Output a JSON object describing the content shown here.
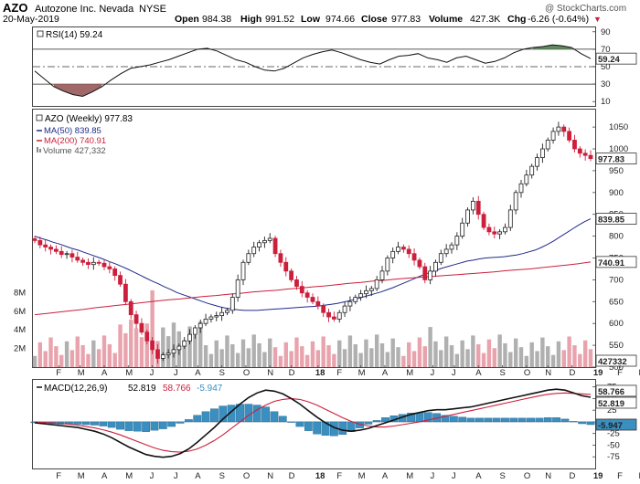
{
  "header": {
    "symbol": "AZO",
    "company": "Autozone Inc. Nevada",
    "exchange": "NYSE",
    "date": "20-May-2019",
    "open_label": "Open",
    "open": "984.38",
    "high_label": "High",
    "high": "991.52",
    "low_label": "Low",
    "low": "974.66",
    "close_label": "Close",
    "close": "977.83",
    "volume_label": "Volume",
    "volume": "427.3K",
    "chg_label": "Chg",
    "chg": "-6.26 (-0.64%)",
    "chg_arrow": "▼",
    "watermark": "@ StockCharts.com"
  },
  "colors": {
    "up": "#222222",
    "down": "#cc1f3c",
    "ma50": "#1f2a8a",
    "ma200": "#cc1f3c",
    "rsi_fill_over": "#5f8a5f",
    "rsi_fill_under": "#a06868",
    "hist": "#3a8fc0",
    "vol_up": "#b0b0b0",
    "vol_down": "#e8a3ad"
  },
  "chart_data": [
    {
      "id": "rsi",
      "type": "line",
      "title": "RSI(14) 59.24",
      "legend": "RSI(14) 59.24",
      "ylim": [
        5,
        95
      ],
      "ticks": [
        90,
        70,
        50,
        30,
        10
      ],
      "levels": [
        70,
        30
      ],
      "dashed_level": 50,
      "last_value": "59.24",
      "values": [
        45,
        36,
        27,
        22,
        18,
        16,
        21,
        27,
        35,
        42,
        48,
        50,
        52,
        55,
        58,
        62,
        66,
        70,
        71,
        68,
        63,
        58,
        55,
        50,
        46,
        45,
        48,
        54,
        60,
        64,
        67,
        69,
        66,
        62,
        58,
        55,
        53,
        58,
        62,
        63,
        65,
        60,
        58,
        55,
        60,
        62,
        58,
        54,
        56,
        60,
        66,
        70,
        72,
        73,
        75,
        74,
        72,
        65,
        59.24
      ]
    },
    {
      "id": "price",
      "type": "candlestick",
      "title": "AZO (Weekly) 977.83",
      "legend": [
        "AZO (Weekly) 977.83",
        "MA(50) 839.85",
        "MA(200) 740.91",
        "Volume 427,332"
      ],
      "ylim": [
        500,
        1090
      ],
      "ticks": [
        1050,
        1000,
        950,
        900,
        850,
        800,
        750,
        700,
        650,
        600,
        550,
        500
      ],
      "last_close": "977.83",
      "ma50_last": "839.85",
      "ma200_last": "740.91",
      "volume_last": "427332",
      "volume_ticks": [
        "8M",
        "6M",
        "4M",
        "2M"
      ],
      "volume_tick_values": [
        8,
        6,
        4,
        2
      ],
      "volume_max": 10,
      "x_labels": [
        "F",
        "M",
        "A",
        "M",
        "J",
        "J",
        "A",
        "S",
        "O",
        "N",
        "D",
        "18",
        "F",
        "M",
        "A",
        "M",
        "J",
        "J",
        "A",
        "S",
        "O",
        "N",
        "D",
        "19",
        "F",
        "M",
        "A",
        "M"
      ],
      "x_label_weeks": [
        4.5,
        8.5,
        13,
        17.5,
        22,
        26.5,
        30.5,
        35,
        39.5,
        44,
        48,
        53,
        57,
        61,
        65.5,
        70,
        74.5,
        78.5,
        83,
        87.5,
        92,
        96,
        100.5,
        105,
        109.5,
        113.5,
        118,
        122.5
      ],
      "closes": [
        790,
        780,
        775,
        770,
        765,
        758,
        760,
        752,
        745,
        740,
        735,
        740,
        738,
        730,
        725,
        710,
        690,
        650,
        620,
        600,
        580,
        560,
        540,
        520,
        528,
        532,
        540,
        548,
        560,
        575,
        590,
        600,
        610,
        615,
        618,
        625,
        630,
        660,
        700,
        740,
        760,
        775,
        785,
        790,
        795,
        760,
        740,
        720,
        700,
        685,
        670,
        660,
        650,
        640,
        625,
        615,
        610,
        625,
        640,
        650,
        660,
        668,
        675,
        680,
        700,
        720,
        750,
        765,
        775,
        770,
        760,
        745,
        730,
        700,
        720,
        740,
        760,
        770,
        780,
        800,
        830,
        860,
        880,
        850,
        820,
        810,
        805,
        810,
        820,
        860,
        900,
        920,
        940,
        960,
        980,
        1000,
        1020,
        1040,
        1050,
        1040,
        1020,
        1000,
        990,
        985,
        977.83
      ],
      "ma50": [
        800,
        795,
        791,
        786,
        782,
        777,
        772,
        768,
        763,
        758,
        753,
        748,
        742,
        737,
        731,
        725,
        718,
        711,
        704,
        697,
        691,
        684,
        678,
        671,
        666,
        661,
        656,
        651,
        646,
        642,
        638,
        635,
        633,
        631,
        630,
        630,
        630,
        631,
        632,
        633,
        634,
        635,
        636,
        637,
        638,
        639,
        640,
        642,
        644,
        646,
        649,
        652,
        656,
        660,
        664,
        668,
        672,
        677,
        682,
        688,
        694,
        700,
        706,
        712,
        717,
        722,
        727,
        731,
        735,
        739,
        743,
        745,
        748,
        750,
        751,
        752,
        753,
        755,
        757,
        760,
        764,
        768,
        774,
        781,
        789,
        798,
        807,
        816,
        825,
        833,
        839.85
      ],
      "ma200": [
        620,
        623,
        626,
        629,
        632,
        636,
        639,
        642,
        645,
        648,
        651,
        654,
        656,
        659,
        662,
        664,
        667,
        669,
        672,
        674,
        676,
        679,
        681,
        684,
        686,
        689,
        692,
        694,
        697,
        699,
        702,
        704,
        706,
        708,
        710,
        712,
        714,
        716,
        718,
        721,
        723,
        725,
        728,
        731,
        734,
        737,
        740.91
      ]
    },
    {
      "id": "macd",
      "type": "line+histogram",
      "title": "MACD(12,26,9) 52.819, 58.766, -5.947",
      "legend": [
        "MACD(12,26,9)",
        "52.819",
        "58.766",
        "-5.947"
      ],
      "ylim": [
        -100,
        90
      ],
      "ticks": [
        75,
        50,
        25,
        0,
        -25,
        -50,
        -75
      ],
      "macd_last": "52.819",
      "signal_last": "58.766",
      "hist_last": "-5.947",
      "macd": [
        -2,
        -4,
        -6,
        -8,
        -10,
        -12,
        -16,
        -20,
        -26,
        -34,
        -44,
        -54,
        -62,
        -70,
        -74,
        -76,
        -74,
        -68,
        -58,
        -44,
        -28,
        -12,
        6,
        22,
        38,
        52,
        62,
        68,
        66,
        60,
        50,
        38,
        24,
        10,
        -2,
        -12,
        -18,
        -20,
        -18,
        -14,
        -8,
        -2,
        4,
        10,
        16,
        20,
        24,
        26,
        26,
        28,
        30,
        32,
        36,
        40,
        44,
        48,
        52,
        56,
        60,
        64,
        68,
        70,
        68,
        62,
        56,
        52.819
      ],
      "signal": [
        0,
        -1,
        -2,
        -3,
        -5,
        -7,
        -10,
        -13,
        -17,
        -22,
        -28,
        -35,
        -42,
        -49,
        -56,
        -61,
        -64,
        -65,
        -63,
        -58,
        -50,
        -40,
        -28,
        -14,
        0,
        14,
        26,
        36,
        44,
        48,
        50,
        48,
        43,
        36,
        27,
        18,
        9,
        1,
        -5,
        -9,
        -11,
        -11,
        -9,
        -6,
        -3,
        0,
        4,
        8,
        12,
        16,
        20,
        24,
        28,
        32,
        36,
        40,
        44,
        48,
        52,
        56,
        59,
        61,
        62,
        61,
        60,
        58.766
      ]
    }
  ]
}
